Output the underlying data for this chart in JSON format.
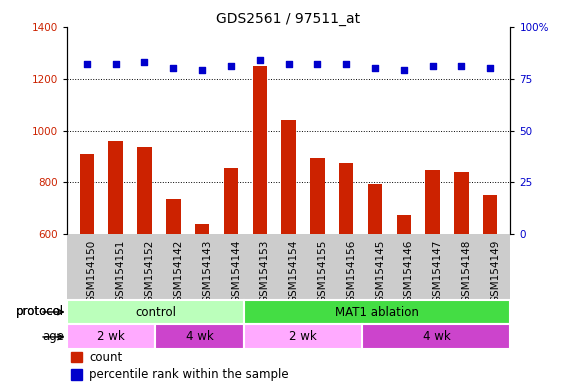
{
  "title": "GDS2561 / 97511_at",
  "samples": [
    "GSM154150",
    "GSM154151",
    "GSM154152",
    "GSM154142",
    "GSM154143",
    "GSM154144",
    "GSM154153",
    "GSM154154",
    "GSM154155",
    "GSM154156",
    "GSM154145",
    "GSM154146",
    "GSM154147",
    "GSM154148",
    "GSM154149"
  ],
  "bar_values": [
    910,
    960,
    935,
    735,
    640,
    855,
    1248,
    1040,
    895,
    875,
    795,
    675,
    848,
    840,
    750
  ],
  "dot_values": [
    82,
    82,
    83,
    80,
    79,
    81,
    84,
    82,
    82,
    82,
    80,
    79,
    81,
    81,
    80
  ],
  "bar_color": "#cc2200",
  "dot_color": "#0000cc",
  "ylim_left": [
    600,
    1400
  ],
  "ylim_right": [
    0,
    100
  ],
  "yticks_left": [
    600,
    800,
    1000,
    1200,
    1400
  ],
  "yticks_right": [
    0,
    25,
    50,
    75,
    100
  ],
  "gridlines": [
    800,
    1000,
    1200
  ],
  "protocol_groups": [
    {
      "label": "control",
      "start": 0,
      "end": 6,
      "color": "#bbffbb"
    },
    {
      "label": "MAT1 ablation",
      "start": 6,
      "end": 15,
      "color": "#44dd44"
    }
  ],
  "age_groups": [
    {
      "label": "2 wk",
      "start": 0,
      "end": 3,
      "color": "#ffaaff"
    },
    {
      "label": "4 wk",
      "start": 3,
      "end": 6,
      "color": "#cc44cc"
    },
    {
      "label": "2 wk",
      "start": 6,
      "end": 10,
      "color": "#ffaaff"
    },
    {
      "label": "4 wk",
      "start": 10,
      "end": 15,
      "color": "#cc44cc"
    }
  ],
  "legend_items": [
    {
      "color": "#cc2200",
      "label": "count"
    },
    {
      "color": "#0000cc",
      "label": "percentile rank within the sample"
    }
  ],
  "title_fontsize": 10,
  "tick_fontsize": 7.5,
  "label_fontsize": 8.5,
  "xtick_bg": "#cccccc"
}
